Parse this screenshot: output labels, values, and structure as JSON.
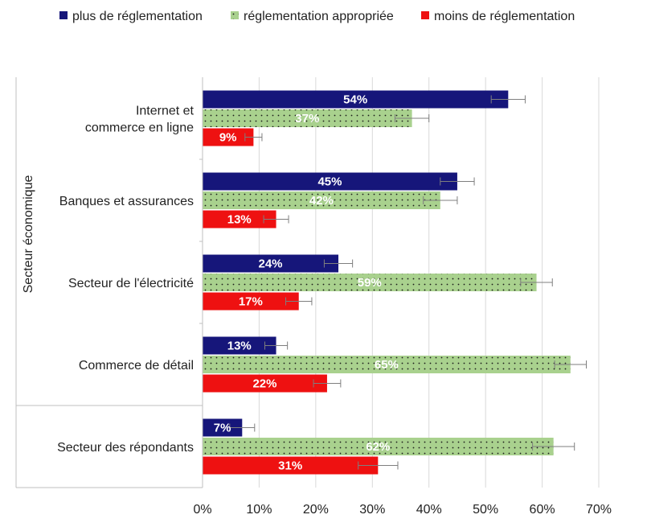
{
  "chart_data": {
    "type": "bar",
    "orientation": "horizontal",
    "ylabel": "Secteur économique",
    "xlim": [
      0,
      70
    ],
    "xticks": [
      "0%",
      "10%",
      "20%",
      "30%",
      "40%",
      "50%",
      "60%",
      "70%"
    ],
    "grid": true,
    "legend_position": "top",
    "categories": [
      [
        "Internet et",
        "commerce en ligne"
      ],
      [
        "Banques et assurances"
      ],
      [
        "Secteur de l'électricité"
      ],
      [
        "Commerce de détail"
      ],
      [
        "Secteur des répondants"
      ]
    ],
    "series": [
      {
        "name": "plus de réglementation",
        "color": "#16167a",
        "pattern": "solid",
        "values": [
          54,
          45,
          24,
          13,
          7
        ],
        "labels": [
          "54%",
          "45%",
          "24%",
          "13%",
          "7%"
        ],
        "error": [
          3,
          3,
          2.5,
          2,
          2.2
        ]
      },
      {
        "name": "réglementation appropriée",
        "color": "#a9d18e",
        "pattern": "dotted",
        "values": [
          37,
          42,
          59,
          65,
          62
        ],
        "labels": [
          "37%",
          "42%",
          "59%",
          "65%",
          "62%"
        ],
        "error": [
          3,
          3,
          2.8,
          2.8,
          3.7
        ]
      },
      {
        "name": "moins de réglementation",
        "color": "#ee1111",
        "pattern": "solid",
        "values": [
          9,
          13,
          17,
          22,
          31
        ],
        "labels": [
          "9%",
          "13%",
          "17%",
          "22%",
          "31%"
        ],
        "error": [
          1.5,
          2.2,
          2.3,
          2.4,
          3.5
        ]
      }
    ]
  }
}
